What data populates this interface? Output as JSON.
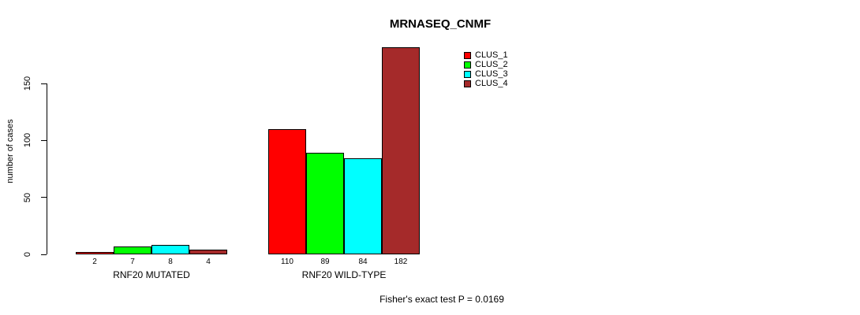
{
  "title": "MRNASEQ_CNMF",
  "ylabel": "number of cases",
  "footer": "Fisher's exact test P = 0.0169",
  "legend": {
    "items": [
      {
        "label": "CLUS_1",
        "color": "#FF0000"
      },
      {
        "label": "CLUS_2",
        "color": "#00FF00"
      },
      {
        "label": "CLUS_3",
        "color": "#00FFFF"
      },
      {
        "label": "CLUS_4",
        "color": "#A52A2A"
      }
    ]
  },
  "chart_data": {
    "type": "bar",
    "title": "MRNASEQ_CNMF",
    "ylabel": "number of cases",
    "xlabel": "",
    "categories": [
      "RNF20 MUTATED",
      "RNF20 WILD-TYPE"
    ],
    "series": [
      {
        "name": "CLUS_1",
        "color": "#FF0000",
        "values": [
          2,
          110
        ]
      },
      {
        "name": "CLUS_2",
        "color": "#00FF00",
        "values": [
          7,
          89
        ]
      },
      {
        "name": "CLUS_3",
        "color": "#00FFFF",
        "values": [
          8,
          84
        ]
      },
      {
        "name": "CLUS_4",
        "color": "#A52A2A",
        "values": [
          4,
          182
        ]
      }
    ],
    "yticks": [
      0,
      50,
      100,
      150
    ],
    "ylim": [
      0,
      185
    ],
    "grid": false,
    "legend_position": "inside-top-right-of-plot",
    "bar_value_labels": true,
    "annotation": "Fisher's exact test P = 0.0169"
  }
}
